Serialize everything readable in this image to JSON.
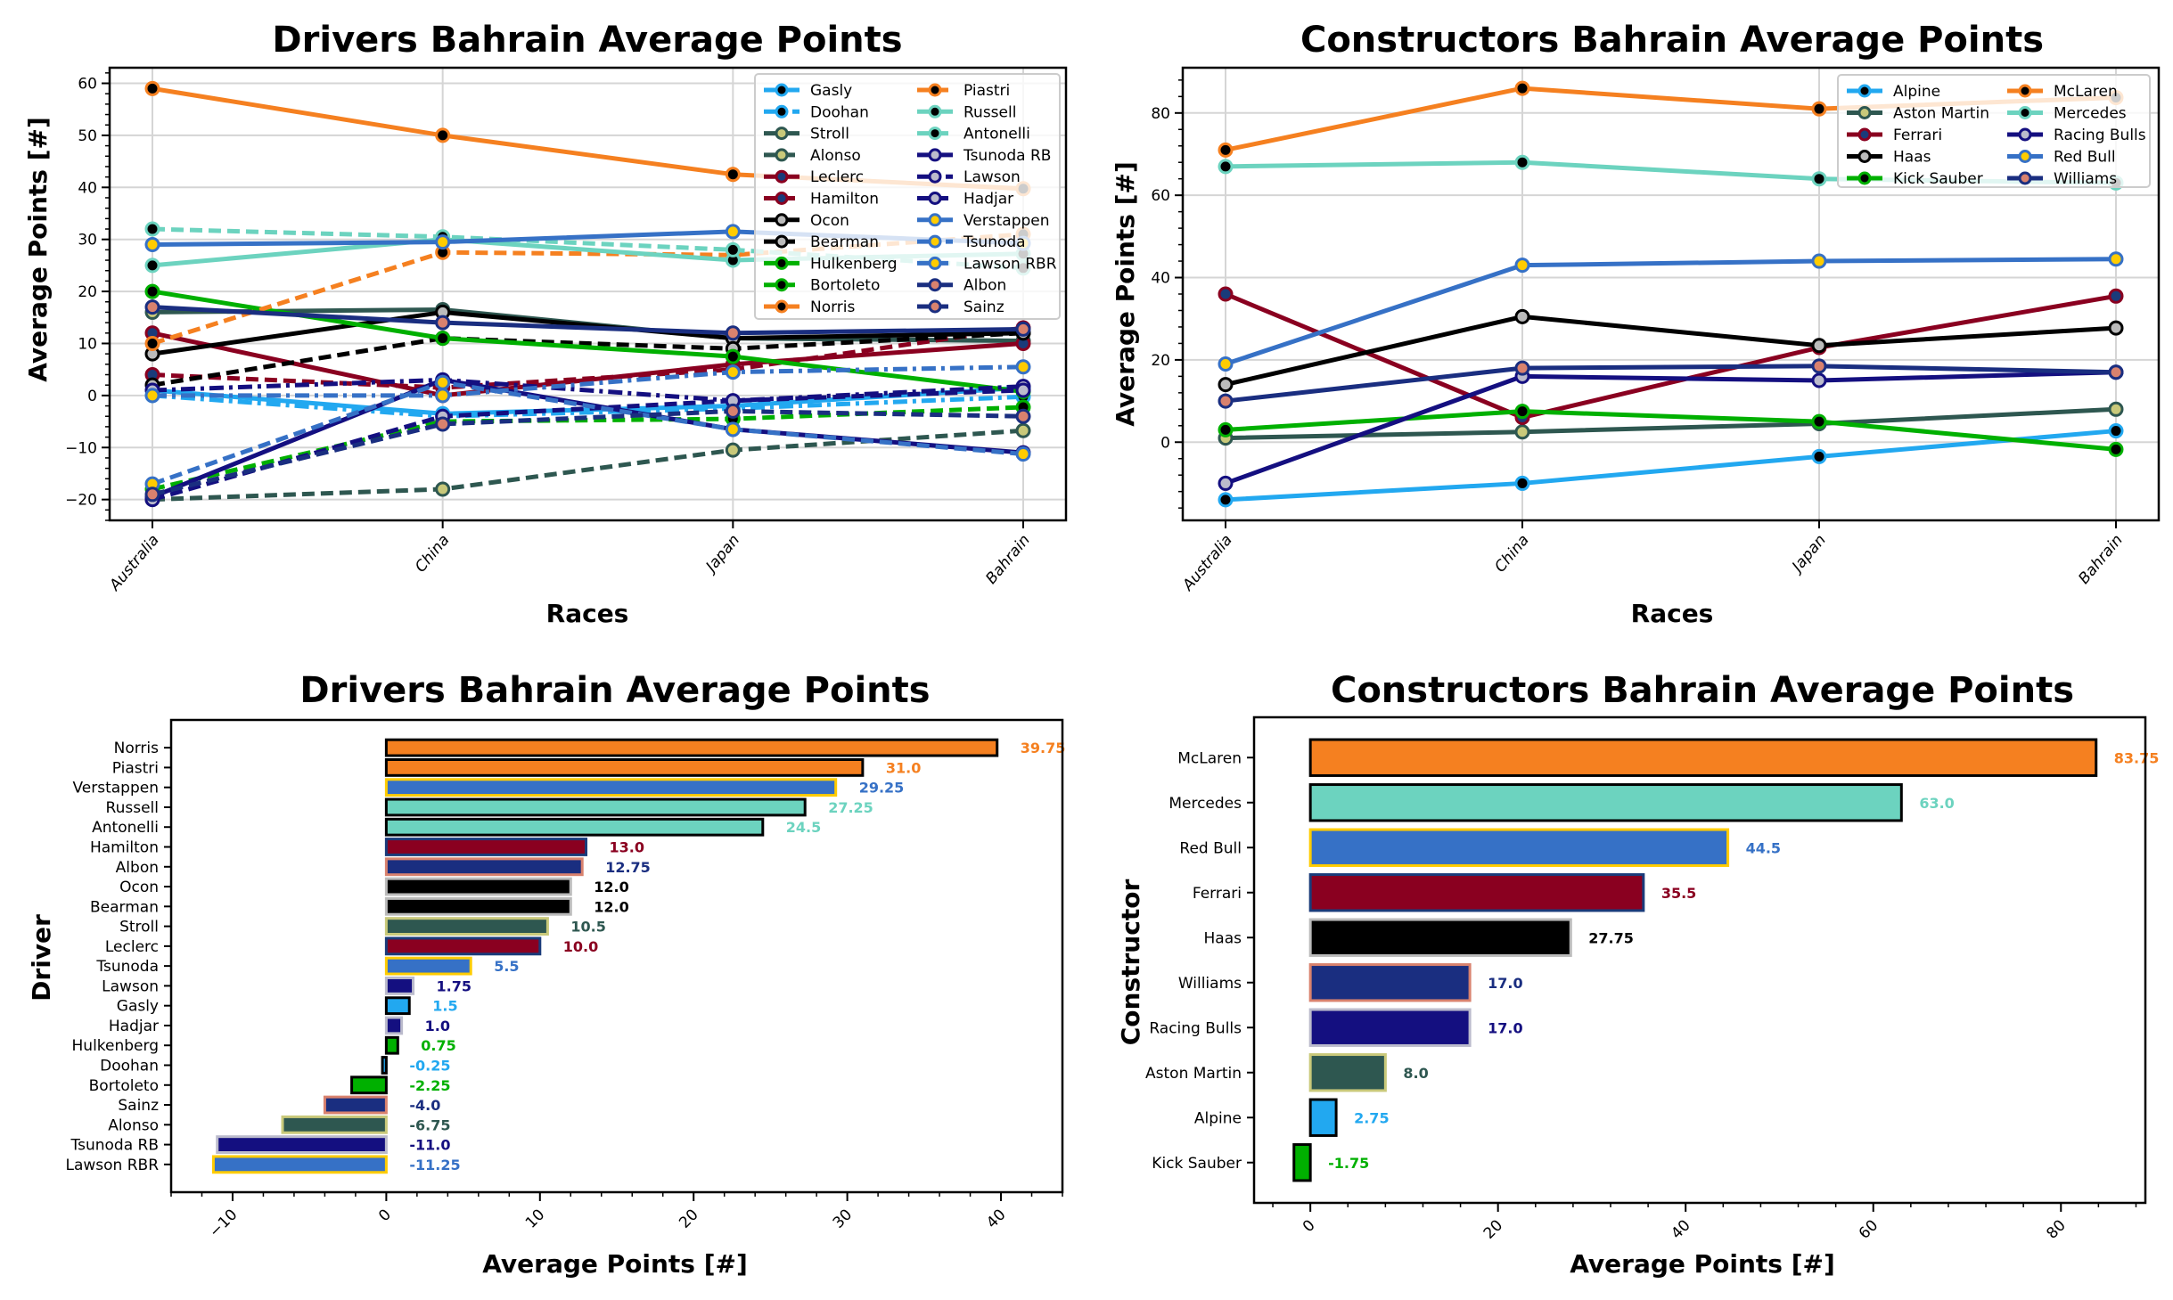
{
  "chart_data": [
    {
      "id": "drivers-line",
      "type": "line",
      "title": "Drivers Bahrain Average Points",
      "xlabel": "Races",
      "ylabel": "Average Points [#]",
      "categories": [
        "Australia",
        "China",
        "Japan",
        "Bahrain"
      ],
      "ylim": [
        -24,
        63
      ],
      "yticks": [
        -20,
        -10,
        0,
        10,
        20,
        30,
        40,
        50,
        60
      ],
      "grid": true,
      "legend": "top-right",
      "legend_columns": 2,
      "series": [
        {
          "name": "Gasly",
          "color": "#22A8F0",
          "marker": "#000000",
          "dash": "solid",
          "values": [
            1,
            -3.5,
            -2,
            1.5
          ]
        },
        {
          "name": "Doohan",
          "color": "#22A8F0",
          "marker": "#000000",
          "dash": "dashdot",
          "values": [
            0,
            -4,
            -2.5,
            -0.25
          ]
        },
        {
          "name": "Stroll",
          "color": "#2E5750",
          "marker": "#C9C97A",
          "dash": "solid",
          "values": [
            16,
            16.5,
            11,
            10.5
          ]
        },
        {
          "name": "Alonso",
          "color": "#2E5750",
          "marker": "#C9C97A",
          "dash": "dashed",
          "values": [
            -20,
            -18,
            -10.5,
            -6.75
          ]
        },
        {
          "name": "Leclerc",
          "color": "#8A0020",
          "marker": "#1A3B7A",
          "dash": "solid",
          "values": [
            12,
            0,
            6,
            10
          ]
        },
        {
          "name": "Hamilton",
          "color": "#8A0020",
          "marker": "#1A3B7A",
          "dash": "dashed",
          "values": [
            4,
            1.5,
            5,
            13
          ]
        },
        {
          "name": "Ocon",
          "color": "#000000",
          "marker": "#BBBBBB",
          "dash": "solid",
          "values": [
            8,
            16,
            11,
            12
          ]
        },
        {
          "name": "Bearman",
          "color": "#000000",
          "marker": "#BBBBBB",
          "dash": "dashed",
          "values": [
            2,
            11,
            9,
            12
          ]
        },
        {
          "name": "Hulkenberg",
          "color": "#00B000",
          "marker": "#000000",
          "dash": "solid",
          "values": [
            20,
            11,
            7.5,
            0.75
          ]
        },
        {
          "name": "Bortoleto",
          "color": "#00B000",
          "marker": "#000000",
          "dash": "dashed",
          "values": [
            -18,
            -5,
            -4.5,
            -2.25
          ]
        },
        {
          "name": "Norris",
          "color": "#F58020",
          "marker": "#000000",
          "dash": "solid",
          "values": [
            59,
            50,
            42.5,
            39.75
          ]
        },
        {
          "name": "Piastri",
          "color": "#F58020",
          "marker": "#000000",
          "dash": "dashed",
          "values": [
            10,
            27.5,
            27,
            31
          ]
        },
        {
          "name": "Russell",
          "color": "#6CD3BF",
          "marker": "#000000",
          "dash": "solid",
          "values": [
            25,
            30,
            26,
            27.25
          ]
        },
        {
          "name": "Antonelli",
          "color": "#6CD3BF",
          "marker": "#000000",
          "dash": "dashed",
          "values": [
            32,
            30.5,
            28,
            24.5
          ]
        },
        {
          "name": "Tsunoda RB",
          "color": "#140F80",
          "marker": "#BBBBCC",
          "dash": "solid",
          "values": [
            -19.5,
            3,
            -6.5,
            -11
          ]
        },
        {
          "name": "Lawson",
          "color": "#140F80",
          "marker": "#BBBBCC",
          "dash": "dashdot",
          "values": [
            1,
            3,
            -1,
            1.75
          ]
        },
        {
          "name": "Hadjar",
          "color": "#140F80",
          "marker": "#BBBBCC",
          "dash": "dashed",
          "values": [
            -20,
            -4,
            -1,
            1
          ]
        },
        {
          "name": "Verstappen",
          "color": "#3671C6",
          "marker": "#FFCC00",
          "dash": "solid",
          "values": [
            29,
            29.5,
            31.5,
            29.25
          ]
        },
        {
          "name": "Tsunoda",
          "color": "#3671C6",
          "marker": "#FFCC00",
          "dash": "dashdot",
          "values": [
            0,
            0,
            4.5,
            5.5
          ]
        },
        {
          "name": "Lawson RBR",
          "color": "#3671C6",
          "marker": "#FFCC00",
          "dash": "dashed",
          "values": [
            -17,
            2.5,
            -6.5,
            -11.25
          ]
        },
        {
          "name": "Albon",
          "color": "#1A2E80",
          "marker": "#D9826E",
          "dash": "solid",
          "values": [
            17,
            14,
            12,
            12.75
          ]
        },
        {
          "name": "Sainz",
          "color": "#1A2E80",
          "marker": "#D9826E",
          "dash": "dashed",
          "values": [
            -19,
            -5.5,
            -3,
            -4
          ]
        }
      ]
    },
    {
      "id": "constructors-line",
      "type": "line",
      "title": "Constructors Bahrain Average Points",
      "xlabel": "Races",
      "ylabel": "Average Points [#]",
      "categories": [
        "Australia",
        "China",
        "Japan",
        "Bahrain"
      ],
      "ylim": [
        -19,
        91
      ],
      "yticks": [
        0,
        20,
        40,
        60,
        80
      ],
      "grid": true,
      "legend": "top-right",
      "legend_columns": 2,
      "series": [
        {
          "name": "Alpine",
          "color": "#22A8F0",
          "marker": "#000000",
          "dash": "solid",
          "values": [
            -14,
            -10,
            -3.5,
            2.75
          ]
        },
        {
          "name": "Aston Martin",
          "color": "#2E5750",
          "marker": "#C9C97A",
          "dash": "solid",
          "values": [
            1,
            2.5,
            4.5,
            8
          ]
        },
        {
          "name": "Ferrari",
          "color": "#8A0020",
          "marker": "#1A3B7A",
          "dash": "solid",
          "values": [
            36,
            6,
            23,
            35.5
          ]
        },
        {
          "name": "Haas",
          "color": "#000000",
          "marker": "#BBBBBB",
          "dash": "solid",
          "values": [
            14,
            30.5,
            23.5,
            27.75
          ]
        },
        {
          "name": "Kick Sauber",
          "color": "#00B000",
          "marker": "#000000",
          "dash": "solid",
          "values": [
            3,
            7.5,
            5,
            -1.75
          ]
        },
        {
          "name": "McLaren",
          "color": "#F58020",
          "marker": "#000000",
          "dash": "solid",
          "values": [
            71,
            86,
            81,
            83.75
          ]
        },
        {
          "name": "Mercedes",
          "color": "#6CD3BF",
          "marker": "#000000",
          "dash": "solid",
          "values": [
            67,
            68,
            64,
            63
          ]
        },
        {
          "name": "Racing Bulls",
          "color": "#140F80",
          "marker": "#BBBBCC",
          "dash": "solid",
          "values": [
            -10,
            16,
            15,
            17
          ]
        },
        {
          "name": "Red Bull",
          "color": "#3671C6",
          "marker": "#FFCC00",
          "dash": "solid",
          "values": [
            19,
            43,
            44,
            44.5
          ]
        },
        {
          "name": "Williams",
          "color": "#1A2E80",
          "marker": "#D9826E",
          "dash": "solid",
          "values": [
            10,
            18,
            18.5,
            17
          ]
        }
      ]
    },
    {
      "id": "drivers-bar",
      "type": "bar",
      "orientation": "horizontal",
      "title": "Drivers Bahrain Average Points",
      "xlabel": "Average Points [#]",
      "ylabel": "Driver",
      "xlim": [
        -14,
        44
      ],
      "xticks": [
        -10,
        0,
        10,
        20,
        30,
        40
      ],
      "grid": false,
      "bars": [
        {
          "label": "Norris",
          "value": 39.75,
          "display": "39.75",
          "fill": "#F58020",
          "edge": "#000000"
        },
        {
          "label": "Piastri",
          "value": 31.0,
          "display": "31.0",
          "fill": "#F58020",
          "edge": "#000000"
        },
        {
          "label": "Verstappen",
          "value": 29.25,
          "display": "29.25",
          "fill": "#3671C6",
          "edge": "#FFCC00"
        },
        {
          "label": "Russell",
          "value": 27.25,
          "display": "27.25",
          "fill": "#6CD3BF",
          "edge": "#000000"
        },
        {
          "label": "Antonelli",
          "value": 24.5,
          "display": "24.5",
          "fill": "#6CD3BF",
          "edge": "#000000"
        },
        {
          "label": "Hamilton",
          "value": 13.0,
          "display": "13.0",
          "fill": "#8A0020",
          "edge": "#1A3B7A"
        },
        {
          "label": "Albon",
          "value": 12.75,
          "display": "12.75",
          "fill": "#1A2E80",
          "edge": "#D9826E"
        },
        {
          "label": "Ocon",
          "value": 12.0,
          "display": "12.0",
          "fill": "#000000",
          "edge": "#BBBBBB"
        },
        {
          "label": "Bearman",
          "value": 12.0,
          "display": "12.0",
          "fill": "#000000",
          "edge": "#BBBBBB"
        },
        {
          "label": "Stroll",
          "value": 10.5,
          "display": "10.5",
          "fill": "#2E5750",
          "edge": "#C9C97A"
        },
        {
          "label": "Leclerc",
          "value": 10.0,
          "display": "10.0",
          "fill": "#8A0020",
          "edge": "#1A3B7A"
        },
        {
          "label": "Tsunoda",
          "value": 5.5,
          "display": "5.5",
          "fill": "#3671C6",
          "edge": "#FFCC00"
        },
        {
          "label": "Lawson",
          "value": 1.75,
          "display": "1.75",
          "fill": "#140F80",
          "edge": "#BBBBCC"
        },
        {
          "label": "Gasly",
          "value": 1.5,
          "display": "1.5",
          "fill": "#22A8F0",
          "edge": "#000000"
        },
        {
          "label": "Hadjar",
          "value": 1.0,
          "display": "1.0",
          "fill": "#140F80",
          "edge": "#BBBBCC"
        },
        {
          "label": "Hulkenberg",
          "value": 0.75,
          "display": "0.75",
          "fill": "#00B000",
          "edge": "#000000"
        },
        {
          "label": "Doohan",
          "value": -0.25,
          "display": "-0.25",
          "fill": "#22A8F0",
          "edge": "#000000"
        },
        {
          "label": "Bortoleto",
          "value": -2.25,
          "display": "-2.25",
          "fill": "#00B000",
          "edge": "#000000"
        },
        {
          "label": "Sainz",
          "value": -4.0,
          "display": "-4.0",
          "fill": "#1A2E80",
          "edge": "#D9826E"
        },
        {
          "label": "Alonso",
          "value": -6.75,
          "display": "-6.75",
          "fill": "#2E5750",
          "edge": "#C9C97A"
        },
        {
          "label": "Tsunoda RB",
          "value": -11.0,
          "display": "-11.0",
          "fill": "#140F80",
          "edge": "#BBBBCC"
        },
        {
          "label": "Lawson RBR",
          "value": -11.25,
          "display": "-11.25",
          "fill": "#3671C6",
          "edge": "#FFCC00"
        }
      ]
    },
    {
      "id": "constructors-bar",
      "type": "bar",
      "orientation": "horizontal",
      "title": "Constructors Bahrain Average Points",
      "xlabel": "Average Points [#]",
      "ylabel": "Constructor",
      "xlim": [
        -6,
        89
      ],
      "xticks": [
        0,
        20,
        40,
        60,
        80
      ],
      "grid": false,
      "bars": [
        {
          "label": "McLaren",
          "value": 83.75,
          "display": "83.75",
          "fill": "#F58020",
          "edge": "#000000"
        },
        {
          "label": "Mercedes",
          "value": 63.0,
          "display": "63.0",
          "fill": "#6CD3BF",
          "edge": "#000000"
        },
        {
          "label": "Red Bull",
          "value": 44.5,
          "display": "44.5",
          "fill": "#3671C6",
          "edge": "#FFCC00"
        },
        {
          "label": "Ferrari",
          "value": 35.5,
          "display": "35.5",
          "fill": "#8A0020",
          "edge": "#1A3B7A"
        },
        {
          "label": "Haas",
          "value": 27.75,
          "display": "27.75",
          "fill": "#000000",
          "edge": "#BBBBBB"
        },
        {
          "label": "Williams",
          "value": 17.0,
          "display": "17.0",
          "fill": "#1A2E80",
          "edge": "#D9826E"
        },
        {
          "label": "Racing Bulls",
          "value": 17.0,
          "display": "17.0",
          "fill": "#140F80",
          "edge": "#BBBBCC"
        },
        {
          "label": "Aston Martin",
          "value": 8.0,
          "display": "8.0",
          "fill": "#2E5750",
          "edge": "#C9C97A"
        },
        {
          "label": "Alpine",
          "value": 2.75,
          "display": "2.75",
          "fill": "#22A8F0",
          "edge": "#000000"
        },
        {
          "label": "Kick Sauber",
          "value": -1.75,
          "display": "-1.75",
          "fill": "#00B000",
          "edge": "#000000"
        }
      ]
    }
  ]
}
